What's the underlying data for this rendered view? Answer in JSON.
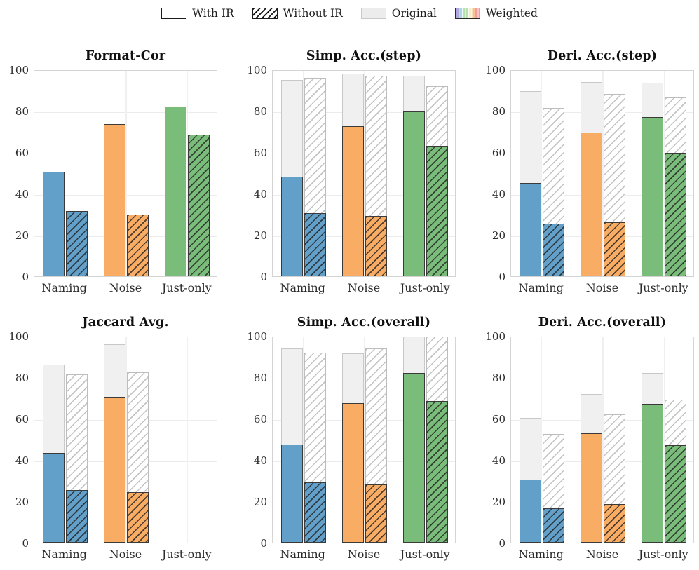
{
  "legend": {
    "items": [
      {
        "label": "With IR",
        "swatch": "with-ir"
      },
      {
        "label": "Without IR",
        "swatch": "without-ir"
      },
      {
        "label": "Original",
        "swatch": "original"
      },
      {
        "label": "Weighted",
        "swatch": "weighted"
      }
    ]
  },
  "axes": {
    "y_ticks": [
      "0",
      "20",
      "40",
      "60",
      "80",
      "100"
    ],
    "ylim": [
      0,
      100
    ],
    "grid": true
  },
  "colors": {
    "naming": "#62a0ca",
    "noise": "#f9ac63",
    "just_only": "#7abd7b",
    "original_fill": "#f0f0f0",
    "original_edge": "#c8c8c8",
    "bar_edge": "#3a3a3a",
    "grid": "#ececec",
    "spine": "#d4d4d4",
    "weighted_stripes": [
      "#b3a6dd",
      "#a6d9e8",
      "#b7e2b0",
      "#f7efc9",
      "#f7c38e",
      "#f29d9d"
    ]
  },
  "chart_data": [
    {
      "type": "bar",
      "title": "Format-Cor",
      "categories": [
        "Naming",
        "Noise",
        "Just-only"
      ],
      "ylim": [
        0,
        100
      ],
      "legend_position": "top",
      "series": [
        {
          "name": "With IR",
          "values": [
            50.5,
            73.5,
            82
          ]
        },
        {
          "name": "Without IR",
          "values": [
            31.5,
            30,
            68.5
          ]
        },
        {
          "name": "Original (with IR)",
          "values": [
            null,
            null,
            null
          ]
        },
        {
          "name": "Original (without IR)",
          "values": [
            null,
            null,
            null
          ]
        }
      ]
    },
    {
      "type": "bar",
      "title": "Simp. Acc.(step)",
      "categories": [
        "Naming",
        "Noise",
        "Just-only"
      ],
      "ylim": [
        0,
        100
      ],
      "series": [
        {
          "name": "With IR",
          "values": [
            48,
            72.5,
            79.5
          ]
        },
        {
          "name": "Without IR",
          "values": [
            30.5,
            29,
            63
          ]
        },
        {
          "name": "Original (with IR)",
          "values": [
            95,
            98,
            97
          ]
        },
        {
          "name": "Original (without IR)",
          "values": [
            96,
            97,
            92
          ]
        }
      ]
    },
    {
      "type": "bar",
      "title": "Deri. Acc.(step)",
      "categories": [
        "Naming",
        "Noise",
        "Just-only"
      ],
      "ylim": [
        0,
        100
      ],
      "series": [
        {
          "name": "With IR",
          "values": [
            45,
            69.5,
            77
          ]
        },
        {
          "name": "Without IR",
          "values": [
            25.5,
            26,
            59.5
          ]
        },
        {
          "name": "Original (with IR)",
          "values": [
            89.5,
            94,
            93.5
          ]
        },
        {
          "name": "Original (without IR)",
          "values": [
            81.5,
            88,
            86.5
          ]
        }
      ]
    },
    {
      "type": "bar",
      "title": "Jaccard Avg.",
      "categories": [
        "Naming",
        "Noise",
        "Just-only"
      ],
      "ylim": [
        0,
        100
      ],
      "series": [
        {
          "name": "With IR",
          "values": [
            43.5,
            70.5,
            null
          ]
        },
        {
          "name": "Without IR",
          "values": [
            25.5,
            24.5,
            null
          ]
        },
        {
          "name": "Original (with IR)",
          "values": [
            86,
            96,
            null
          ]
        },
        {
          "name": "Original (without IR)",
          "values": [
            81.5,
            82.5,
            null
          ]
        }
      ]
    },
    {
      "type": "bar",
      "title": "Simp. Acc.(overall)",
      "categories": [
        "Naming",
        "Noise",
        "Just-only"
      ],
      "ylim": [
        0,
        100
      ],
      "series": [
        {
          "name": "With IR",
          "values": [
            47.5,
            67.5,
            82
          ]
        },
        {
          "name": "Without IR",
          "values": [
            29,
            28,
            68.5
          ]
        },
        {
          "name": "Original (with IR)",
          "values": [
            94,
            91.5,
            100
          ]
        },
        {
          "name": "Original (without IR)",
          "values": [
            92,
            94,
            100
          ]
        }
      ]
    },
    {
      "type": "bar",
      "title": "Deri. Acc.(overall)",
      "categories": [
        "Naming",
        "Noise",
        "Just-only"
      ],
      "ylim": [
        0,
        100
      ],
      "series": [
        {
          "name": "With IR",
          "values": [
            30.5,
            53,
            67
          ]
        },
        {
          "name": "Without IR",
          "values": [
            16.5,
            18.5,
            47
          ]
        },
        {
          "name": "Original (with IR)",
          "values": [
            60.5,
            72,
            82
          ]
        },
        {
          "name": "Original (without IR)",
          "values": [
            52.5,
            62,
            69
          ]
        }
      ]
    }
  ]
}
